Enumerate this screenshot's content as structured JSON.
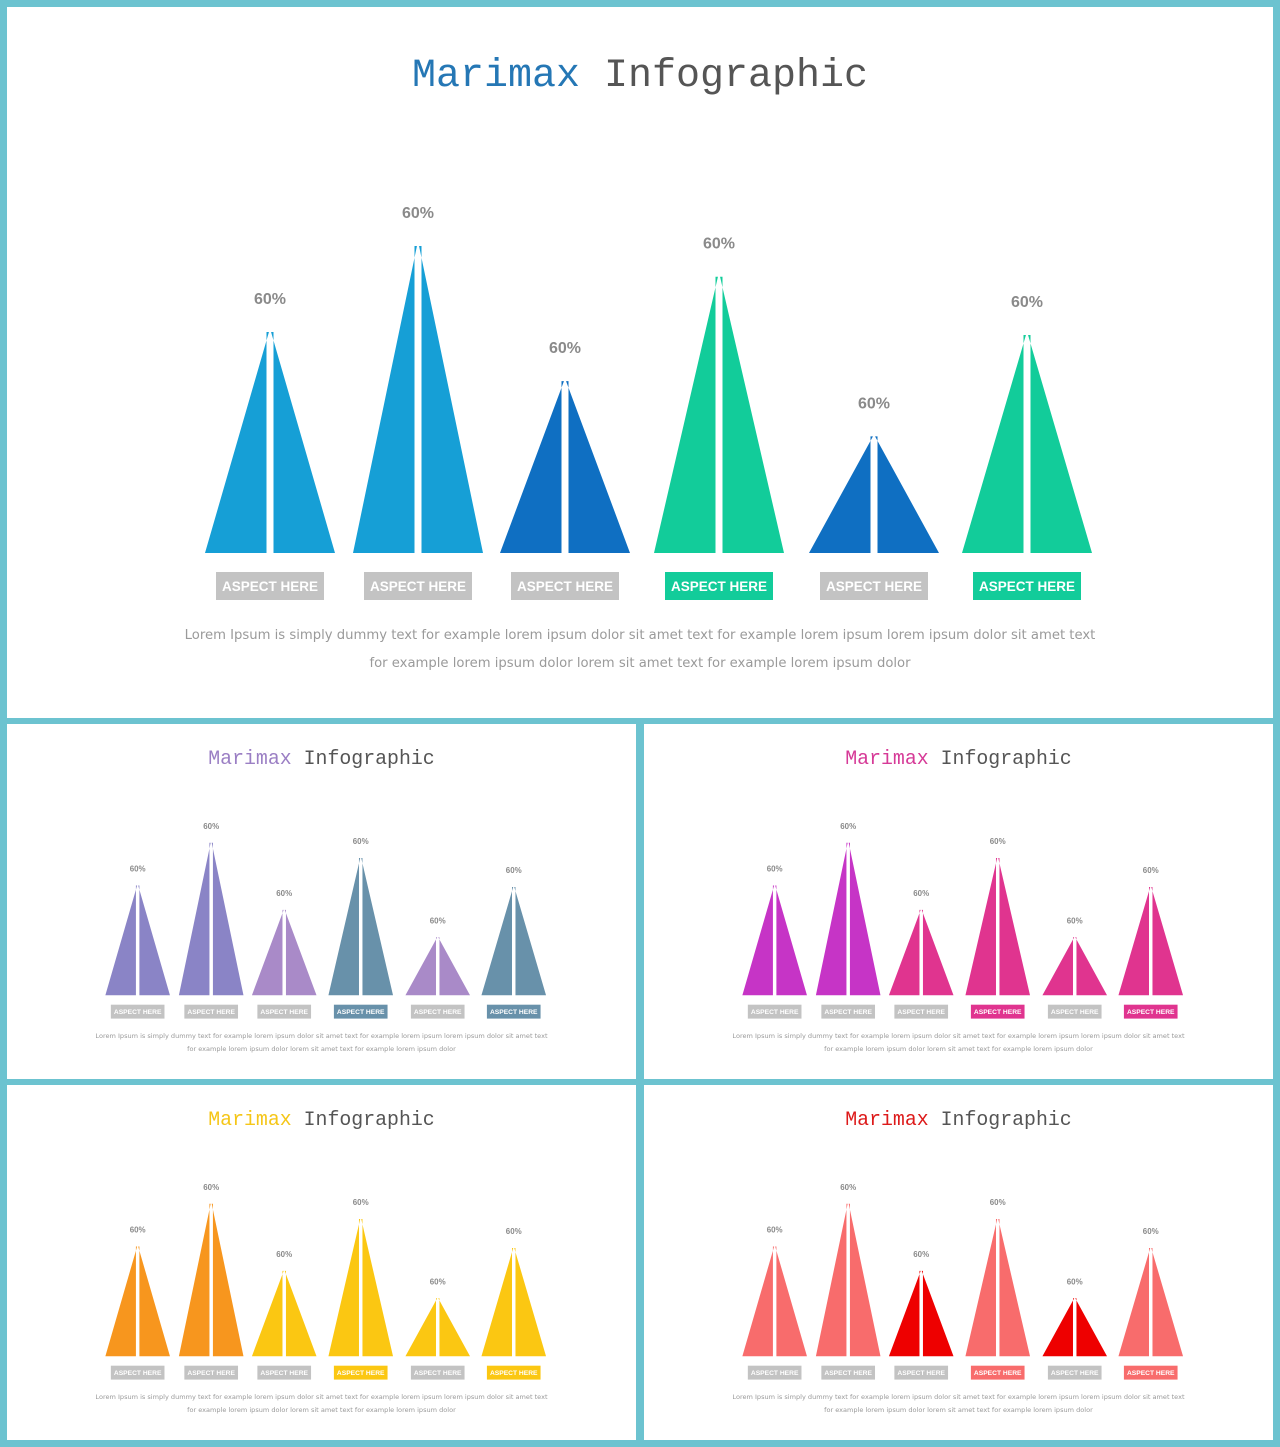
{
  "slides": [
    {
      "title_brand": "Marimax",
      "title_rest": "Infographic",
      "brand_color": "#2577b5",
      "colors": [
        "#169fd6",
        "#169fd6",
        "#0f6fc2",
        "#12cc9a",
        "#0f6fc2",
        "#12cc9a"
      ],
      "label_bg": [
        "#c3c3c3",
        "#c3c3c3",
        "#c3c3c3",
        "#12cc9a",
        "#c3c3c3",
        "#12cc9a"
      ],
      "lorem_line1": "Lorem Ipsum is simply dummy text for example lorem ipsum dolor sit amet text for example lorem ipsum lorem ipsum dolor sit amet text",
      "lorem_line2": "for example lorem ipsum dolor lorem sit amet text for example lorem ipsum dolor"
    },
    {
      "title_brand": "Marimax",
      "title_rest": "Infographic",
      "brand_color": "#9b7fc4",
      "colors": [
        "#8a84c6",
        "#8a84c6",
        "#a98ac8",
        "#6891aa",
        "#a98ac8",
        "#6891aa"
      ],
      "label_bg": [
        "#c3c3c3",
        "#c3c3c3",
        "#c3c3c3",
        "#6891aa",
        "#c3c3c3",
        "#6891aa"
      ],
      "lorem_line1": "Lorem Ipsum is simply dummy text for example lorem ipsum dolor sit amet text for example lorem ipsum lorem ipsum dolor sit amet text",
      "lorem_line2": "for example lorem ipsum dolor lorem sit amet text for example lorem ipsum dolor"
    },
    {
      "title_brand": "Marimax",
      "title_rest": "Infographic",
      "brand_color": "#d63a97",
      "colors": [
        "#c634c6",
        "#c634c6",
        "#e0348f",
        "#e0348f",
        "#e0348f",
        "#e0348f"
      ],
      "label_bg": [
        "#c3c3c3",
        "#c3c3c3",
        "#c3c3c3",
        "#e0348f",
        "#c3c3c3",
        "#e0348f"
      ],
      "lorem_line1": "Lorem Ipsum is simply dummy text for example lorem ipsum dolor sit amet text for example lorem ipsum lorem ipsum dolor sit amet text",
      "lorem_line2": "for example lorem ipsum dolor lorem sit amet text for example lorem ipsum dolor"
    },
    {
      "title_brand": "Marimax",
      "title_rest": "Infographic",
      "brand_color": "#f5c618",
      "colors": [
        "#f7961e",
        "#f7961e",
        "#fbc712",
        "#fbc712",
        "#fbc712",
        "#fbc712"
      ],
      "label_bg": [
        "#c3c3c3",
        "#c3c3c3",
        "#c3c3c3",
        "#fbc712",
        "#c3c3c3",
        "#fbc712"
      ],
      "lorem_line1": "Lorem Ipsum is simply dummy text for example lorem ipsum dolor sit amet text for example lorem ipsum lorem ipsum dolor sit amet text",
      "lorem_line2": "for example lorem ipsum dolor lorem sit amet text for example lorem ipsum dolor"
    },
    {
      "title_brand": "Marimax",
      "title_rest": "Infographic",
      "brand_color": "#dd1a1a",
      "colors": [
        "#f86c6c",
        "#f86c6c",
        "#ee0000",
        "#f86c6c",
        "#ee0000",
        "#f86c6c"
      ],
      "label_bg": [
        "#c3c3c3",
        "#c3c3c3",
        "#c3c3c3",
        "#f86c6c",
        "#c3c3c3",
        "#f86c6c"
      ],
      "lorem_line1": "Lorem Ipsum is simply dummy text for example lorem ipsum dolor sit amet text for example lorem ipsum lorem ipsum dolor sit amet text",
      "lorem_line2": "for example lorem ipsum dolor lorem sit amet text for example lorem ipsum dolor"
    }
  ],
  "chart_data": {
    "type": "bar",
    "categories": [
      "ASPECT HERE",
      "ASPECT HERE",
      "ASPECT HERE",
      "ASPECT HERE",
      "ASPECT HERE",
      "ASPECT HERE"
    ],
    "data_labels": [
      "60%",
      "60%",
      "60%",
      "60%",
      "60%",
      "60%"
    ],
    "relative_heights": [
      0.72,
      1.0,
      0.56,
      0.9,
      0.38,
      0.71
    ]
  }
}
